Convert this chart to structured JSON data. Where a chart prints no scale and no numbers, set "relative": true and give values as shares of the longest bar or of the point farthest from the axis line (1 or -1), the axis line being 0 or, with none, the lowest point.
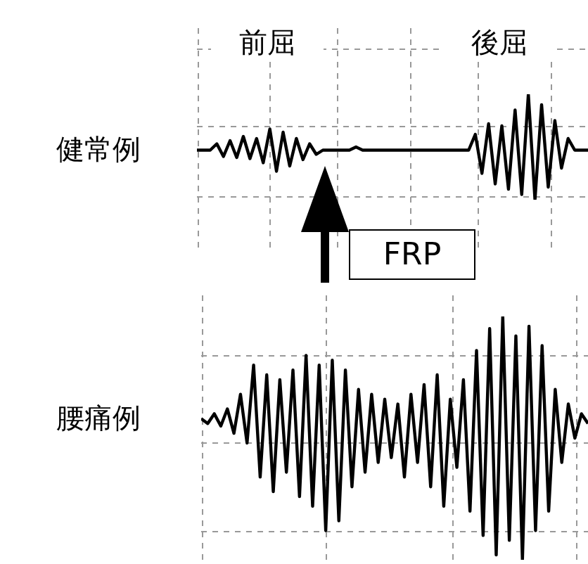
{
  "chart_data": [
    {
      "type": "line",
      "relative": true,
      "grid": true,
      "marker": "none",
      "line_style": "solid",
      "legend": false,
      "ylabel": "健常例",
      "annotations": [
        "前屈",
        "後屈",
        "FRP"
      ],
      "categories": [
        null,
        null,
        null,
        null,
        null,
        null,
        null,
        null,
        null,
        null,
        null,
        null,
        null,
        null,
        null,
        null,
        null,
        null,
        null,
        null,
        null,
        null,
        null,
        null,
        null,
        null,
        null,
        null,
        null,
        null,
        null,
        null,
        null,
        null,
        null,
        null,
        null,
        null,
        null,
        null,
        null,
        null,
        null,
        null,
        null,
        null,
        null,
        null,
        null,
        null,
        null,
        null,
        null,
        null,
        null,
        null,
        null,
        null,
        null,
        null
      ],
      "series": [
        {
          "color": "#000000",
          "values": [
            0.47,
            0.47,
            0.47,
            0.53,
            0.41,
            0.56,
            0.4,
            0.6,
            0.39,
            0.58,
            0.35,
            0.67,
            0.27,
            0.64,
            0.32,
            0.58,
            0.38,
            0.53,
            0.43,
            0.47,
            0.47,
            0.47,
            0.47,
            0.47,
            0.5,
            0.47,
            0.47,
            0.47,
            0.47,
            0.47,
            0.47,
            0.47,
            0.47,
            0.47,
            0.47,
            0.47,
            0.47,
            0.47,
            0.47,
            0.47,
            0.47,
            0.47,
            0.62,
            0.25,
            0.72,
            0.15,
            0.7,
            0.1,
            0.85,
            0.05,
            1.0,
            0.0,
            0.9,
            0.12,
            0.75,
            0.3,
            0.58,
            0.47,
            0.47,
            0.47
          ]
        }
      ]
    },
    {
      "type": "line",
      "relative": true,
      "grid": true,
      "marker": "none",
      "line_style": "solid",
      "legend": false,
      "ylabel": "腰痛例",
      "categories": [
        null,
        null,
        null,
        null,
        null,
        null,
        null,
        null,
        null,
        null,
        null,
        null,
        null,
        null,
        null,
        null,
        null,
        null,
        null,
        null,
        null,
        null,
        null,
        null,
        null,
        null,
        null,
        null,
        null,
        null,
        null,
        null,
        null,
        null,
        null,
        null,
        null,
        null,
        null,
        null,
        null,
        null,
        null,
        null,
        null,
        null,
        null,
        null,
        null,
        null,
        null,
        null,
        null,
        null,
        null,
        null,
        null,
        null,
        null,
        null
      ],
      "series": [
        {
          "color": "#000000",
          "values": [
            0.58,
            0.56,
            0.6,
            0.55,
            0.62,
            0.52,
            0.68,
            0.48,
            0.8,
            0.34,
            0.76,
            0.28,
            0.74,
            0.36,
            0.78,
            0.26,
            0.84,
            0.22,
            0.8,
            0.12,
            0.82,
            0.16,
            0.78,
            0.3,
            0.7,
            0.36,
            0.68,
            0.4,
            0.66,
            0.42,
            0.64,
            0.34,
            0.68,
            0.4,
            0.72,
            0.3,
            0.76,
            0.22,
            0.66,
            0.38,
            0.74,
            0.2,
            0.86,
            0.1,
            0.95,
            0.02,
            1.0,
            0.08,
            0.92,
            0.0,
            0.96,
            0.12,
            0.88,
            0.2,
            0.7,
            0.4,
            0.64,
            0.5,
            0.6,
            0.56
          ]
        }
      ]
    }
  ]
}
